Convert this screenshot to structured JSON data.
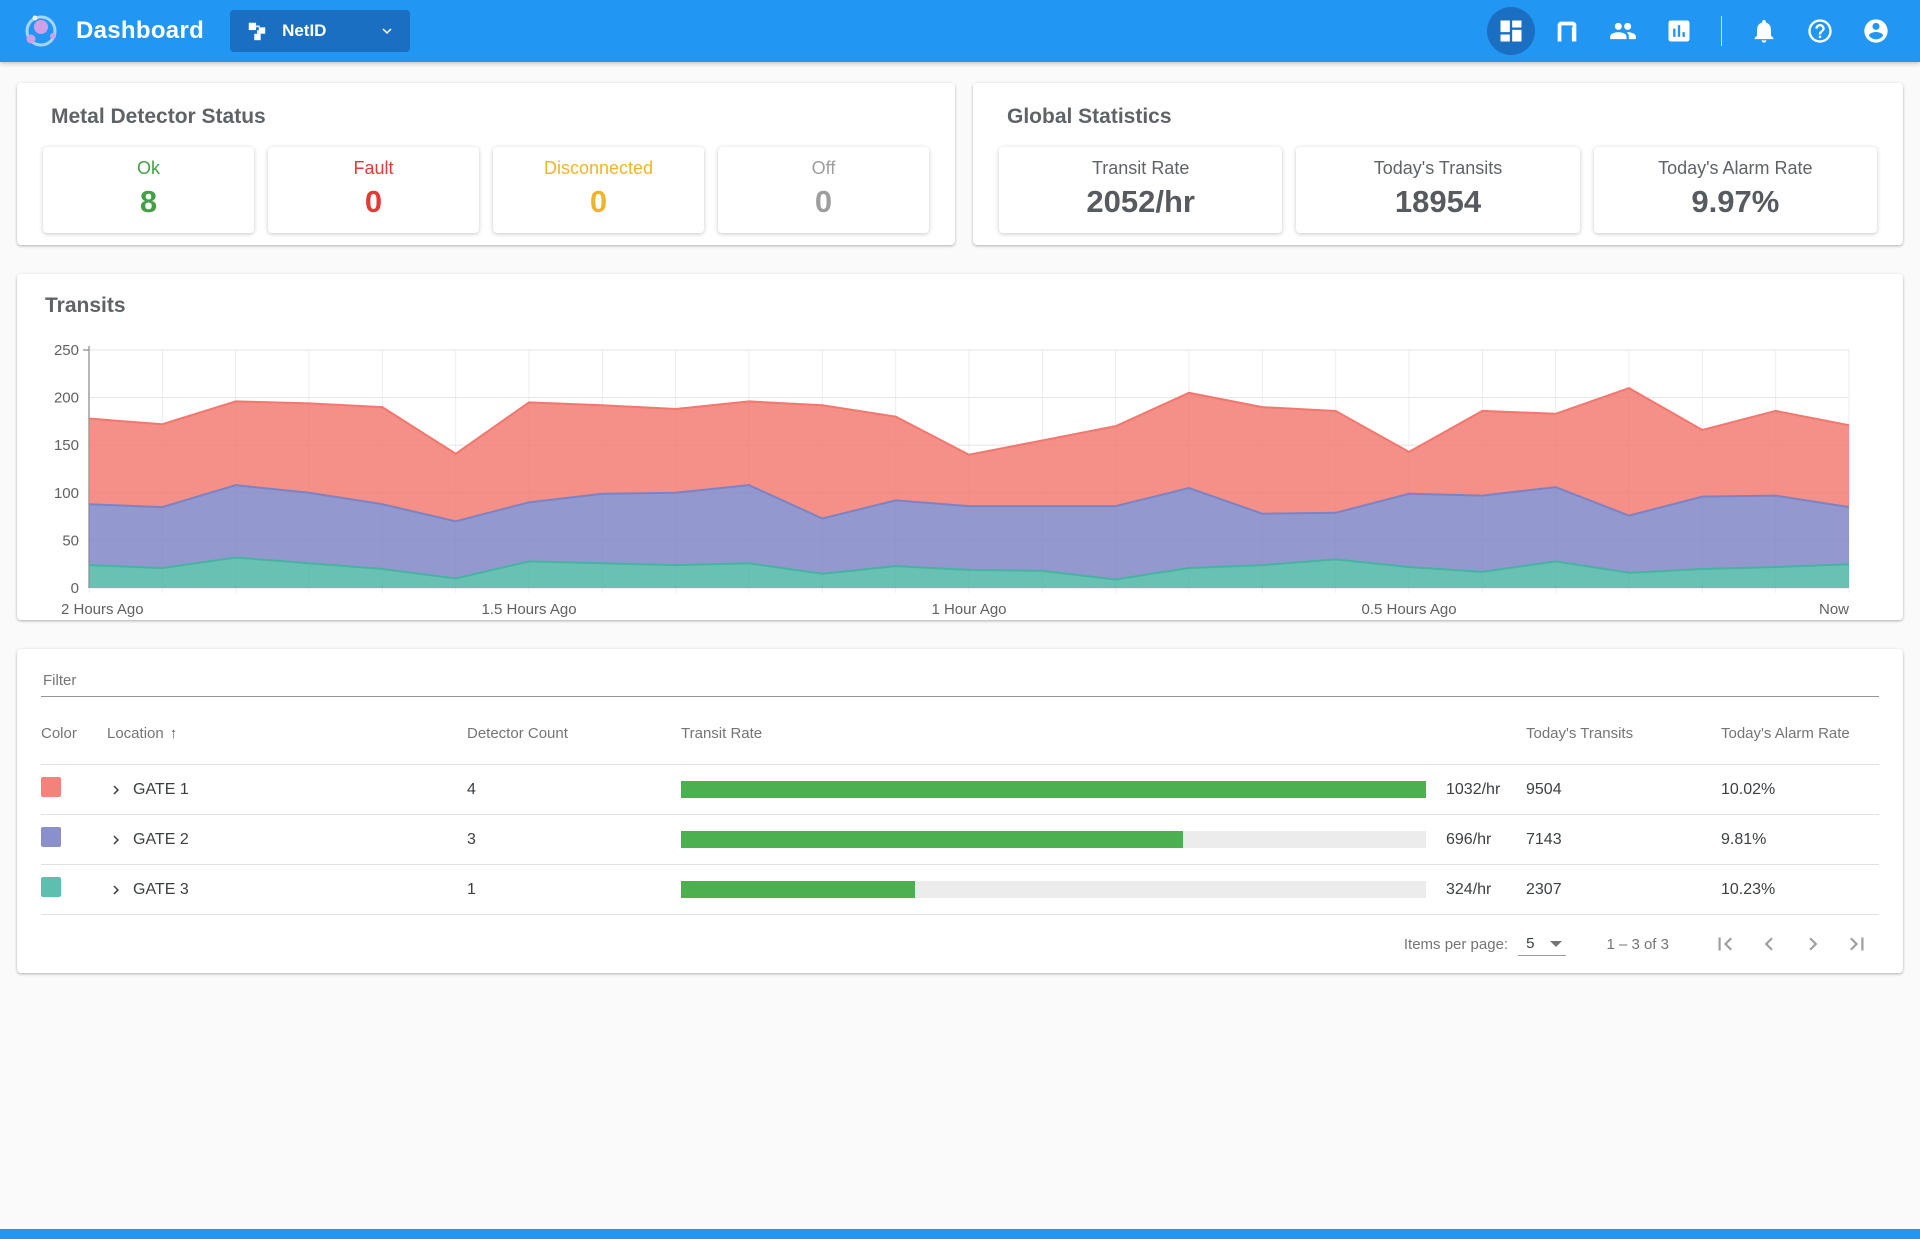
{
  "header": {
    "app_title": "Dashboard",
    "site_selector": {
      "label": "NetID"
    },
    "nav_icons": [
      "dashboard",
      "detector-gate",
      "people",
      "reports",
      "notifications",
      "help",
      "account"
    ]
  },
  "metal_detector_status": {
    "title": "Metal Detector Status",
    "statuses": [
      {
        "label": "Ok",
        "value": "8",
        "color": "#43A047"
      },
      {
        "label": "Fault",
        "value": "0",
        "color": "#E53935"
      },
      {
        "label": "Disconnected",
        "value": "0",
        "color": "#F0B429"
      },
      {
        "label": "Off",
        "value": "0",
        "color": "#9E9E9E"
      }
    ]
  },
  "global_statistics": {
    "title": "Global Statistics",
    "stats": [
      {
        "label": "Transit Rate",
        "value": "2052/hr"
      },
      {
        "label": "Today's Transits",
        "value": "18954"
      },
      {
        "label": "Today's Alarm Rate",
        "value": "9.97%"
      }
    ]
  },
  "chart_data": {
    "type": "area",
    "stacked": true,
    "title": "Transits",
    "ylim": [
      0,
      250
    ],
    "y_ticks": [
      0,
      50,
      100,
      150,
      200,
      250
    ],
    "x_tick_labels": [
      "2 Hours Ago",
      "1.5 Hours Ago",
      "1 Hour Ago",
      "0.5 Hours Ago",
      "Now"
    ],
    "grid": true,
    "legend": "none",
    "stack_order_bottom_to_top": [
      "GATE 3",
      "GATE 2",
      "GATE 1"
    ],
    "series": [
      {
        "name": "GATE 1",
        "color": "#F2776E",
        "values": [
          90,
          87,
          88,
          94,
          102,
          71,
          105,
          93,
          88,
          88,
          119,
          88,
          54,
          69,
          84,
          100,
          112,
          107,
          44,
          89,
          77,
          134,
          70,
          89,
          86
        ]
      },
      {
        "name": "GATE 2",
        "color": "#7B83C5",
        "values": [
          64,
          64,
          76,
          74,
          68,
          60,
          62,
          73,
          76,
          82,
          58,
          69,
          67,
          68,
          77,
          84,
          54,
          49,
          77,
          80,
          78,
          60,
          76,
          75,
          60
        ]
      },
      {
        "name": "GATE 3",
        "color": "#47B3A2",
        "values": [
          24,
          21,
          32,
          26,
          20,
          10,
          28,
          26,
          24,
          26,
          15,
          23,
          19,
          18,
          9,
          21,
          24,
          30,
          22,
          17,
          28,
          16,
          20,
          22,
          25
        ]
      }
    ]
  },
  "table": {
    "filter_placeholder": "Filter",
    "columns": [
      "Color",
      "Location",
      "Detector Count",
      "Transit Rate",
      "Today's Transits",
      "Today's Alarm Rate"
    ],
    "sort_column": "Location",
    "sort_direction": "asc",
    "rows": [
      {
        "color": "#F2837B",
        "location": "GATE 1",
        "detector_count": "4",
        "transit_rate": "1032/hr",
        "transit_rate_pct": 100,
        "todays_transits": "9504",
        "todays_alarm_rate": "10.02%"
      },
      {
        "color": "#8990CB",
        "location": "GATE 2",
        "detector_count": "3",
        "transit_rate": "696/hr",
        "transit_rate_pct": 67.4,
        "todays_transits": "7143",
        "todays_alarm_rate": "9.81%"
      },
      {
        "color": "#5FBFAF",
        "location": "GATE 3",
        "detector_count": "1",
        "transit_rate": "324/hr",
        "transit_rate_pct": 31.4,
        "todays_transits": "2307",
        "todays_alarm_rate": "10.23%"
      }
    ],
    "paginator": {
      "items_per_page_label": "Items per page:",
      "items_per_page_value": "5",
      "range_label": "1 – 3 of 3"
    }
  }
}
